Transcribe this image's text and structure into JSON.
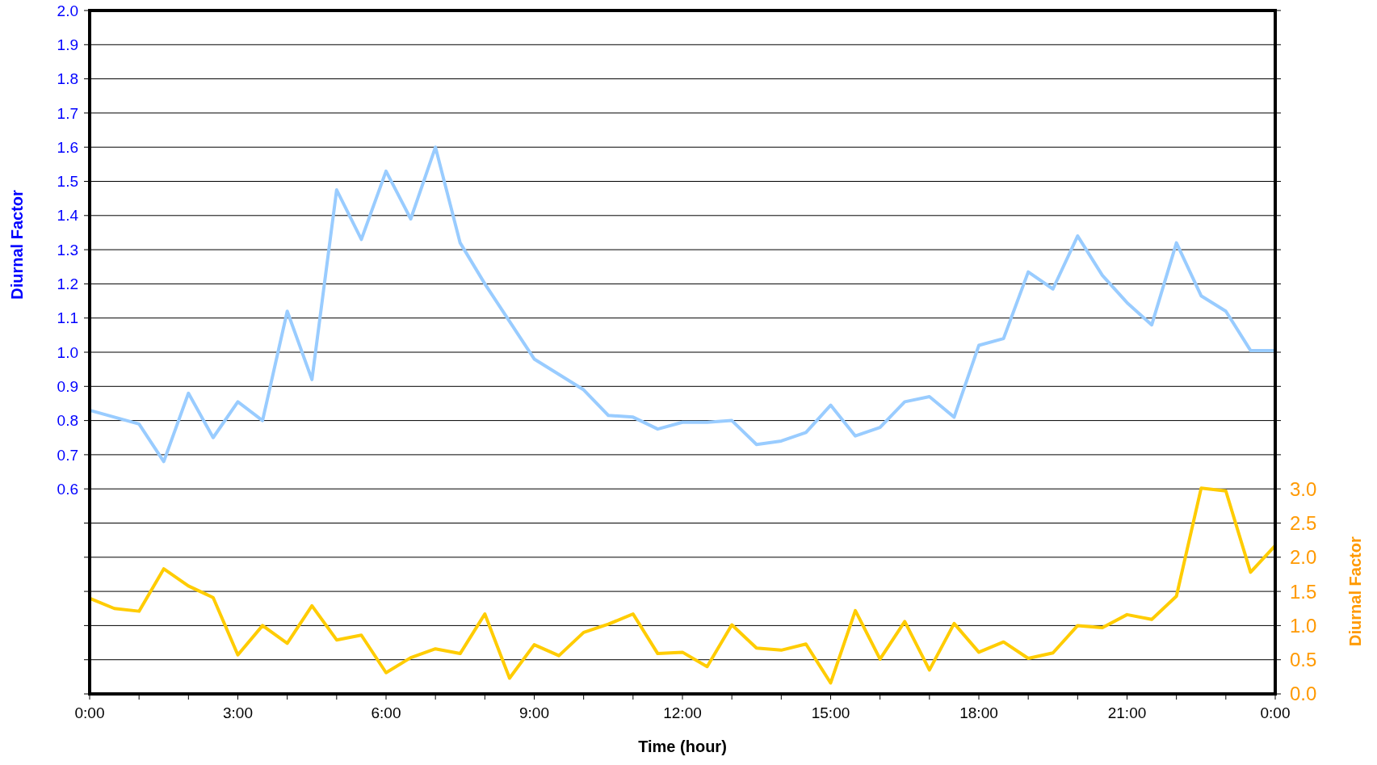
{
  "chart_data": {
    "type": "line",
    "xlabel": "Time (hour)",
    "ylabel": "Diurnal Factor",
    "y2label": "Diurnal Factor",
    "x": [
      0,
      0.5,
      1,
      1.5,
      2,
      2.5,
      3,
      3.5,
      4,
      4.5,
      5,
      5.5,
      6,
      6.5,
      7,
      7.5,
      8,
      8.5,
      9,
      9.5,
      10,
      10.5,
      11,
      11.5,
      12,
      12.5,
      13,
      13.5,
      14,
      14.5,
      15,
      15.5,
      16,
      16.5,
      17,
      17.5,
      18,
      18.5,
      19,
      19.5,
      20,
      20.5,
      21,
      21.5,
      22,
      22.5,
      23,
      23.5,
      24
    ],
    "xlim": [
      0,
      24
    ],
    "xticks": [
      {
        "value": 0,
        "label": "0:00"
      },
      {
        "value": 1,
        "label": null
      },
      {
        "value": 2,
        "label": null
      },
      {
        "value": 3,
        "label": "3:00"
      },
      {
        "value": 4,
        "label": null
      },
      {
        "value": 5,
        "label": null
      },
      {
        "value": 6,
        "label": "6:00"
      },
      {
        "value": 7,
        "label": null
      },
      {
        "value": 8,
        "label": null
      },
      {
        "value": 9,
        "label": "9:00"
      },
      {
        "value": 10,
        "label": null
      },
      {
        "value": 11,
        "label": null
      },
      {
        "value": 12,
        "label": "12:00"
      },
      {
        "value": 13,
        "label": null
      },
      {
        "value": 14,
        "label": null
      },
      {
        "value": 15,
        "label": "15:00"
      },
      {
        "value": 16,
        "label": null
      },
      {
        "value": 17,
        "label": null
      },
      {
        "value": 18,
        "label": "18:00"
      },
      {
        "value": 19,
        "label": null
      },
      {
        "value": 20,
        "label": null
      },
      {
        "value": 21,
        "label": "21:00"
      },
      {
        "value": 22,
        "label": null
      },
      {
        "value": 23,
        "label": null
      },
      {
        "value": 24,
        "label": "0:00"
      }
    ],
    "ylim": [
      0,
      2
    ],
    "yticks": [
      {
        "value": 0,
        "label": null
      },
      {
        "value": 0.1,
        "label": null
      },
      {
        "value": 0.2,
        "label": null
      },
      {
        "value": 0.3,
        "label": null
      },
      {
        "value": 0.4,
        "label": null
      },
      {
        "value": 0.5,
        "label": null
      },
      {
        "value": 0.6,
        "label": "0.6"
      },
      {
        "value": 0.7,
        "label": "0.7"
      },
      {
        "value": 0.8,
        "label": "0.8"
      },
      {
        "value": 0.9,
        "label": "0.9"
      },
      {
        "value": 1,
        "label": "1.0"
      },
      {
        "value": 1.1,
        "label": "1.1"
      },
      {
        "value": 1.2,
        "label": "1.2"
      },
      {
        "value": 1.3,
        "label": "1.3"
      },
      {
        "value": 1.4,
        "label": "1.4"
      },
      {
        "value": 1.5,
        "label": "1.5"
      },
      {
        "value": 1.6,
        "label": "1.6"
      },
      {
        "value": 1.7,
        "label": "1.7"
      },
      {
        "value": 1.8,
        "label": "1.8"
      },
      {
        "value": 1.9,
        "label": "1.9"
      },
      {
        "value": 2,
        "label": "2.0"
      }
    ],
    "y2lim": [
      0,
      10
    ],
    "y2ticks": [
      {
        "value": 0,
        "label": "0.0"
      },
      {
        "value": 0.5,
        "label": "0.5"
      },
      {
        "value": 1,
        "label": "1.0"
      },
      {
        "value": 1.5,
        "label": "1.5"
      },
      {
        "value": 2,
        "label": "2.0"
      },
      {
        "value": 2.5,
        "label": "2.5"
      },
      {
        "value": 3,
        "label": "3.0"
      },
      {
        "value": 3.5,
        "label": null
      },
      {
        "value": 4,
        "label": null
      },
      {
        "value": 4.5,
        "label": null
      },
      {
        "value": 5,
        "label": null
      },
      {
        "value": 5.5,
        "label": null
      },
      {
        "value": 6,
        "label": null
      },
      {
        "value": 6.5,
        "label": null
      },
      {
        "value": 7,
        "label": null
      },
      {
        "value": 7.5,
        "label": null
      },
      {
        "value": 8,
        "label": null
      },
      {
        "value": 8.5,
        "label": null
      },
      {
        "value": 9,
        "label": null
      },
      {
        "value": 9.5,
        "label": null
      },
      {
        "value": 10,
        "label": null
      }
    ],
    "grid": "y",
    "marker": "none",
    "line_style": "solid",
    "series": [
      {
        "color": "#99ccff",
        "values": [
          0.83,
          0.81,
          0.79,
          0.68,
          0.88,
          0.75,
          0.855,
          0.8,
          1.12,
          0.92,
          1.475,
          1.33,
          1.53,
          1.39,
          1.6,
          1.32,
          1.2,
          1.09,
          0.98,
          0.935,
          0.89,
          0.815,
          0.81,
          0.775,
          0.795,
          0.795,
          0.8,
          0.73,
          0.74,
          0.765,
          0.845,
          0.755,
          0.78,
          0.855,
          0.87,
          0.81,
          1.02,
          1.04,
          1.235,
          1.185,
          1.34,
          1.225,
          1.145,
          1.08,
          1.32,
          1.165,
          1.12,
          1.005,
          1.005
        ]
      },
      {
        "color": "#ffcc00",
        "axis": "y2",
        "values": [
          1.4,
          1.25,
          1.21,
          1.83,
          1.58,
          1.41,
          0.57,
          1.0,
          0.74,
          1.29,
          0.79,
          0.86,
          0.31,
          0.53,
          0.66,
          0.59,
          1.17,
          0.23,
          0.72,
          0.56,
          0.9,
          1.02,
          1.17,
          0.59,
          0.61,
          0.4,
          1.01,
          0.67,
          0.64,
          0.73,
          0.16,
          1.22,
          0.51,
          1.06,
          0.35,
          1.03,
          0.61,
          0.76,
          0.52,
          0.6,
          1.0,
          0.97,
          1.16,
          1.09,
          1.43,
          3.01,
          2.97,
          1.78,
          2.17
        ]
      }
    ]
  }
}
